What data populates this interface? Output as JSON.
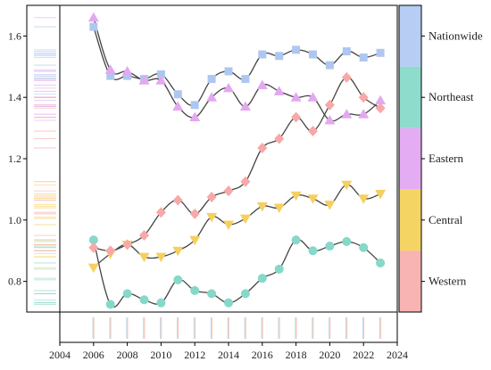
{
  "chart_data": {
    "type": "line",
    "title": "",
    "xlabel": "",
    "ylabel": "",
    "xlim": [
      2004,
      2024
    ],
    "ylim": [
      0.7,
      1.7
    ],
    "x_ticks": [
      2004,
      2006,
      2008,
      2010,
      2012,
      2014,
      2016,
      2018,
      2020,
      2022,
      2024
    ],
    "y_ticks": [
      "0.8",
      "1.0",
      "1.2",
      "1.4",
      "1.6"
    ],
    "y_tick_values": [
      0.8,
      1.0,
      1.2,
      1.4,
      1.6
    ],
    "grid": false,
    "legend_position": "right (color bar)",
    "x": [
      2006,
      2007,
      2008,
      2009,
      2010,
      2011,
      2012,
      2013,
      2014,
      2015,
      2016,
      2017,
      2018,
      2019,
      2020,
      2021,
      2022,
      2023
    ],
    "series": [
      {
        "name": "Nationwide",
        "marker": "square",
        "color": "#aec7f0",
        "values": [
          1.63,
          1.47,
          1.47,
          1.46,
          1.475,
          1.41,
          1.375,
          1.46,
          1.485,
          1.46,
          1.54,
          1.535,
          1.555,
          1.54,
          1.505,
          1.55,
          1.53,
          1.545
        ]
      },
      {
        "name": "Northeast",
        "marker": "circle",
        "color": "#86d8c9",
        "values": [
          0.935,
          0.725,
          0.76,
          0.74,
          0.73,
          0.805,
          0.77,
          0.76,
          0.73,
          0.76,
          0.81,
          0.84,
          0.935,
          0.9,
          0.915,
          0.93,
          0.91,
          0.86
        ]
      },
      {
        "name": "Eastern",
        "marker": "triangle-up",
        "color": "#e3a8f0",
        "values": [
          1.66,
          1.49,
          1.485,
          1.455,
          1.455,
          1.37,
          1.335,
          1.4,
          1.43,
          1.37,
          1.44,
          1.42,
          1.4,
          1.4,
          1.325,
          1.345,
          1.345,
          1.39
        ]
      },
      {
        "name": "Central",
        "marker": "triangle-down",
        "color": "#f5d060",
        "values": [
          0.845,
          0.89,
          0.92,
          0.88,
          0.88,
          0.9,
          0.935,
          1.01,
          0.985,
          1.005,
          1.045,
          1.04,
          1.08,
          1.07,
          1.05,
          1.115,
          1.07,
          1.085
        ]
      },
      {
        "name": "Western",
        "marker": "diamond",
        "color": "#f7a8a8",
        "values": [
          0.91,
          0.9,
          0.92,
          0.95,
          1.025,
          1.065,
          1.02,
          1.075,
          1.095,
          1.125,
          1.235,
          1.265,
          1.335,
          1.29,
          1.375,
          1.465,
          1.4,
          1.365
        ]
      }
    ],
    "legend": [
      {
        "name": "Nationwide",
        "color": "#b7cdf3"
      },
      {
        "name": "Northeast",
        "color": "#8edccb"
      },
      {
        "name": "Eastern",
        "color": "#e4acf3"
      },
      {
        "name": "Central",
        "color": "#f4d564"
      },
      {
        "name": "Western",
        "color": "#f8b3b3"
      }
    ],
    "line_color": "#444444"
  }
}
